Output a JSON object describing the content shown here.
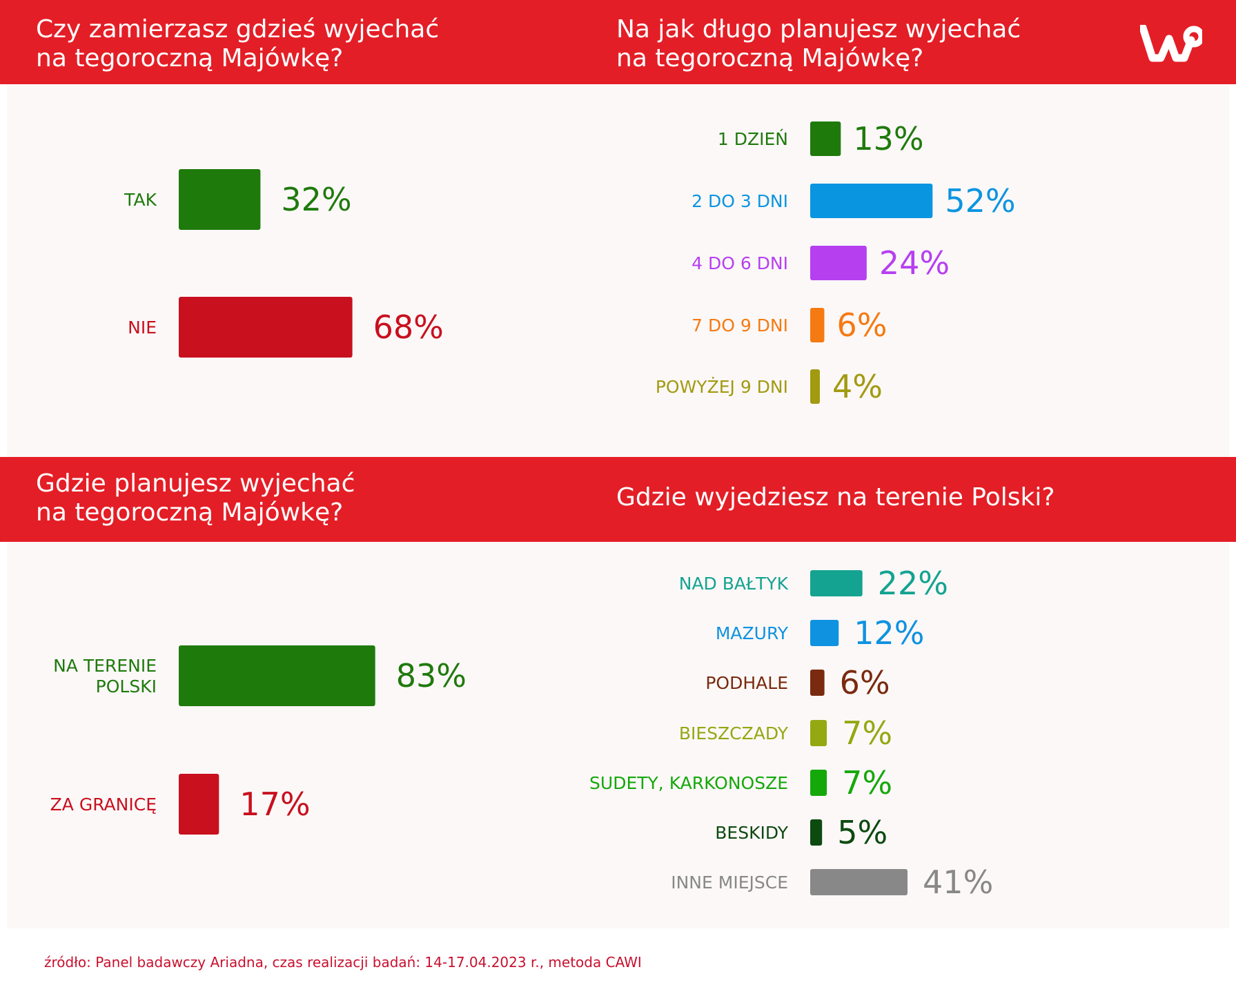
{
  "brand": {
    "red": "#e41e26",
    "logo_icon": "wp-logo-icon",
    "logo_text": "WP"
  },
  "questions": {
    "q1": "Czy zamierzasz gdzieś wyjechać\nna tegoroczną Majówkę?",
    "q2": "Na jak długo planujesz wyjechać\nna tegoroczną Majówkę?",
    "q3": "Gdzie planujesz wyjechać\nna tegoroczną Majówkę?",
    "q4": "Gdzie wyjedziesz na terenie Polski?"
  },
  "chart_data": [
    {
      "type": "bar",
      "orientation": "horizontal",
      "title": "Czy zamierzasz gdzieś wyjechać na tegoroczną Majówkę?",
      "categories": [
        "TAK",
        "NIE"
      ],
      "values": [
        32,
        68
      ],
      "labels": [
        "32%",
        "68%"
      ],
      "colors": [
        "#1f7a0c",
        "#c8101e"
      ],
      "unit": "%"
    },
    {
      "type": "bar",
      "orientation": "horizontal",
      "title": "Na jak długo planujesz wyjechać na tegoroczną Majówkę?",
      "categories": [
        "1 DZIEŃ",
        "2 DO 3 DNI",
        "4 DO 6 DNI",
        "7 DO 9 DNI",
        "POWYŻEJ 9 DNI"
      ],
      "values": [
        13,
        52,
        24,
        6,
        4
      ],
      "labels": [
        "13%",
        "52%",
        "24%",
        "6%",
        "4%"
      ],
      "colors": [
        "#1f7a0c",
        "#0a95e0",
        "#b63ff0",
        "#f57a12",
        "#a29a10"
      ],
      "unit": "%"
    },
    {
      "type": "bar",
      "orientation": "horizontal",
      "title": "Gdzie planujesz wyjechać na tegoroczną Majówkę?",
      "categories": [
        "NA TERENIE\nPOLSKI",
        "ZA GRANICĘ"
      ],
      "values": [
        83,
        17
      ],
      "labels": [
        "83%",
        "17%"
      ],
      "colors": [
        "#1f7a0c",
        "#c8101e"
      ],
      "unit": "%"
    },
    {
      "type": "bar",
      "orientation": "horizontal",
      "title": "Gdzie wyjedziesz na terenie Polski?",
      "categories": [
        "NAD BAŁTYK",
        "MAZURY",
        "PODHALE",
        "BIESZCZADY",
        "SUDETY, KARKONOSZE",
        "BESKIDY",
        "INNE MIEJSCE"
      ],
      "values": [
        22,
        12,
        6,
        7,
        7,
        5,
        41
      ],
      "labels": [
        "22%",
        "12%",
        "6%",
        "7%",
        "7%",
        "5%",
        "41%"
      ],
      "colors": [
        "#14a390",
        "#0f92e0",
        "#7a2a0e",
        "#94a812",
        "#15a80a",
        "#0d4a10",
        "#888888"
      ],
      "unit": "%"
    }
  ],
  "footer": {
    "source": "źródło: Panel badawczy Ariadna, czas realizacji badań: 14-17.04.2023 r., metoda CAWI"
  }
}
